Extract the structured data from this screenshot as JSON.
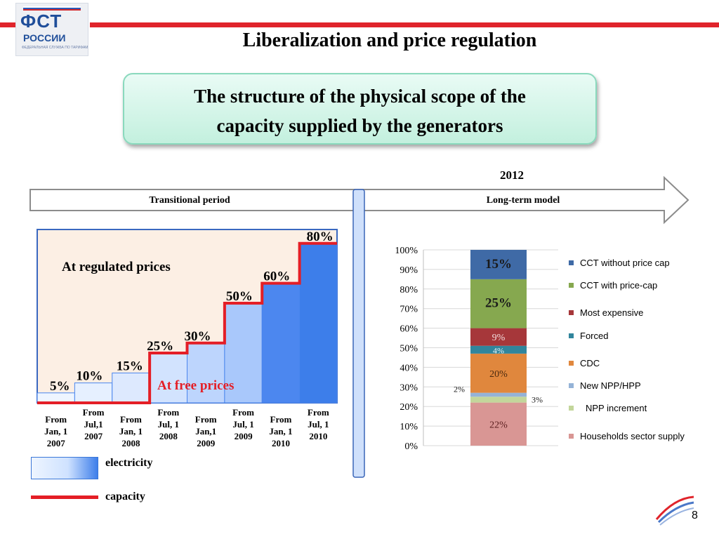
{
  "logo": {
    "line1": "ФСТ",
    "line2": "РОССИИ",
    "line3": "ФЕДЕРАЛЬНАЯ СЛУЖБА ПО ТАРИФАМ"
  },
  "title": "Liberalization and price regulation",
  "subtitle_line1": "The structure of the physical scope of the",
  "subtitle_line2": "capacity supplied by the generators",
  "timeline": {
    "year": "2012",
    "left_label": "Transitional period",
    "right_label": "Long-term model"
  },
  "colors": {
    "accent_red": "#e0242b",
    "electricity_blue": "#3d7eea",
    "capacity_red": "#e41e26"
  },
  "legend_bottom": {
    "electricity": "electricity",
    "capacity": "capacity"
  },
  "page_number": "8",
  "chart_data": [
    {
      "type": "area",
      "title": "",
      "annotations": [
        "At regulated prices",
        "At free prices"
      ],
      "categories": [
        "From Jan, 1 2007",
        "From Jul,1 2007",
        "From Jan, 1 2008",
        "From Jul, 1 2008",
        "From Jan,1 2009",
        "From Jul, 1 2009",
        "From Jan, 1 2010",
        "From Jul, 1 2010"
      ],
      "category_lines": [
        [
          "From",
          "Jan, 1",
          "2007"
        ],
        [
          "From",
          "Jul,1",
          "2007"
        ],
        [
          "From",
          "Jan, 1",
          "2008"
        ],
        [
          "From",
          "Jul, 1",
          "2008"
        ],
        [
          "From",
          "Jan,1",
          "2009"
        ],
        [
          "From",
          "Jul, 1",
          "2009"
        ],
        [
          "From",
          "Jan, 1",
          "2010"
        ],
        [
          "From",
          "Jul, 1",
          "2010"
        ]
      ],
      "series": [
        {
          "name": "electricity",
          "values": [
            5,
            10,
            15,
            25,
            30,
            50,
            60,
            80
          ]
        },
        {
          "name": "capacity",
          "values": [
            0,
            0,
            0,
            25,
            30,
            50,
            60,
            80
          ]
        }
      ],
      "value_labels": [
        "5%",
        "10%",
        "15%",
        "25%",
        "30%",
        "50%",
        "60%",
        "80%"
      ],
      "ylim": [
        0,
        100
      ]
    },
    {
      "type": "bar",
      "stacked": true,
      "title": "",
      "yticks": [
        "0%",
        "10%",
        "20%",
        "30%",
        "40%",
        "50%",
        "60%",
        "70%",
        "80%",
        "90%",
        "100%"
      ],
      "ylim": [
        0,
        100
      ],
      "grid": true,
      "segments": [
        {
          "name": "Households sector supply",
          "value": 22,
          "label": "22%",
          "color": "#d99694"
        },
        {
          "name": "NPP increment",
          "value": 3,
          "label": "3%",
          "color": "#c3d69b"
        },
        {
          "name": "New NPP/HPP",
          "value": 2,
          "label": "2%",
          "color": "#95b3d7"
        },
        {
          "name": "CDC",
          "value": 20,
          "label": "20%",
          "color": "#e0873d"
        },
        {
          "name": "Forced",
          "value": 4,
          "label": "4%",
          "color": "#31859c"
        },
        {
          "name": "Most expensive",
          "value": 9,
          "label": "9%",
          "color": "#a6373a"
        },
        {
          "name": "CCT with price-cap",
          "value": 25,
          "label": "25%",
          "color": "#86a84f"
        },
        {
          "name": "CCT without price cap",
          "value": 15,
          "label": "15%",
          "color": "#3f6aa6"
        }
      ],
      "legend": [
        "CCT without price cap",
        "CCT with price-cap",
        "Most expensive",
        "Forced",
        "CDC",
        "New NPP/HPP",
        "NPP increment",
        "Households sector supply"
      ],
      "legend_position": "right"
    }
  ]
}
